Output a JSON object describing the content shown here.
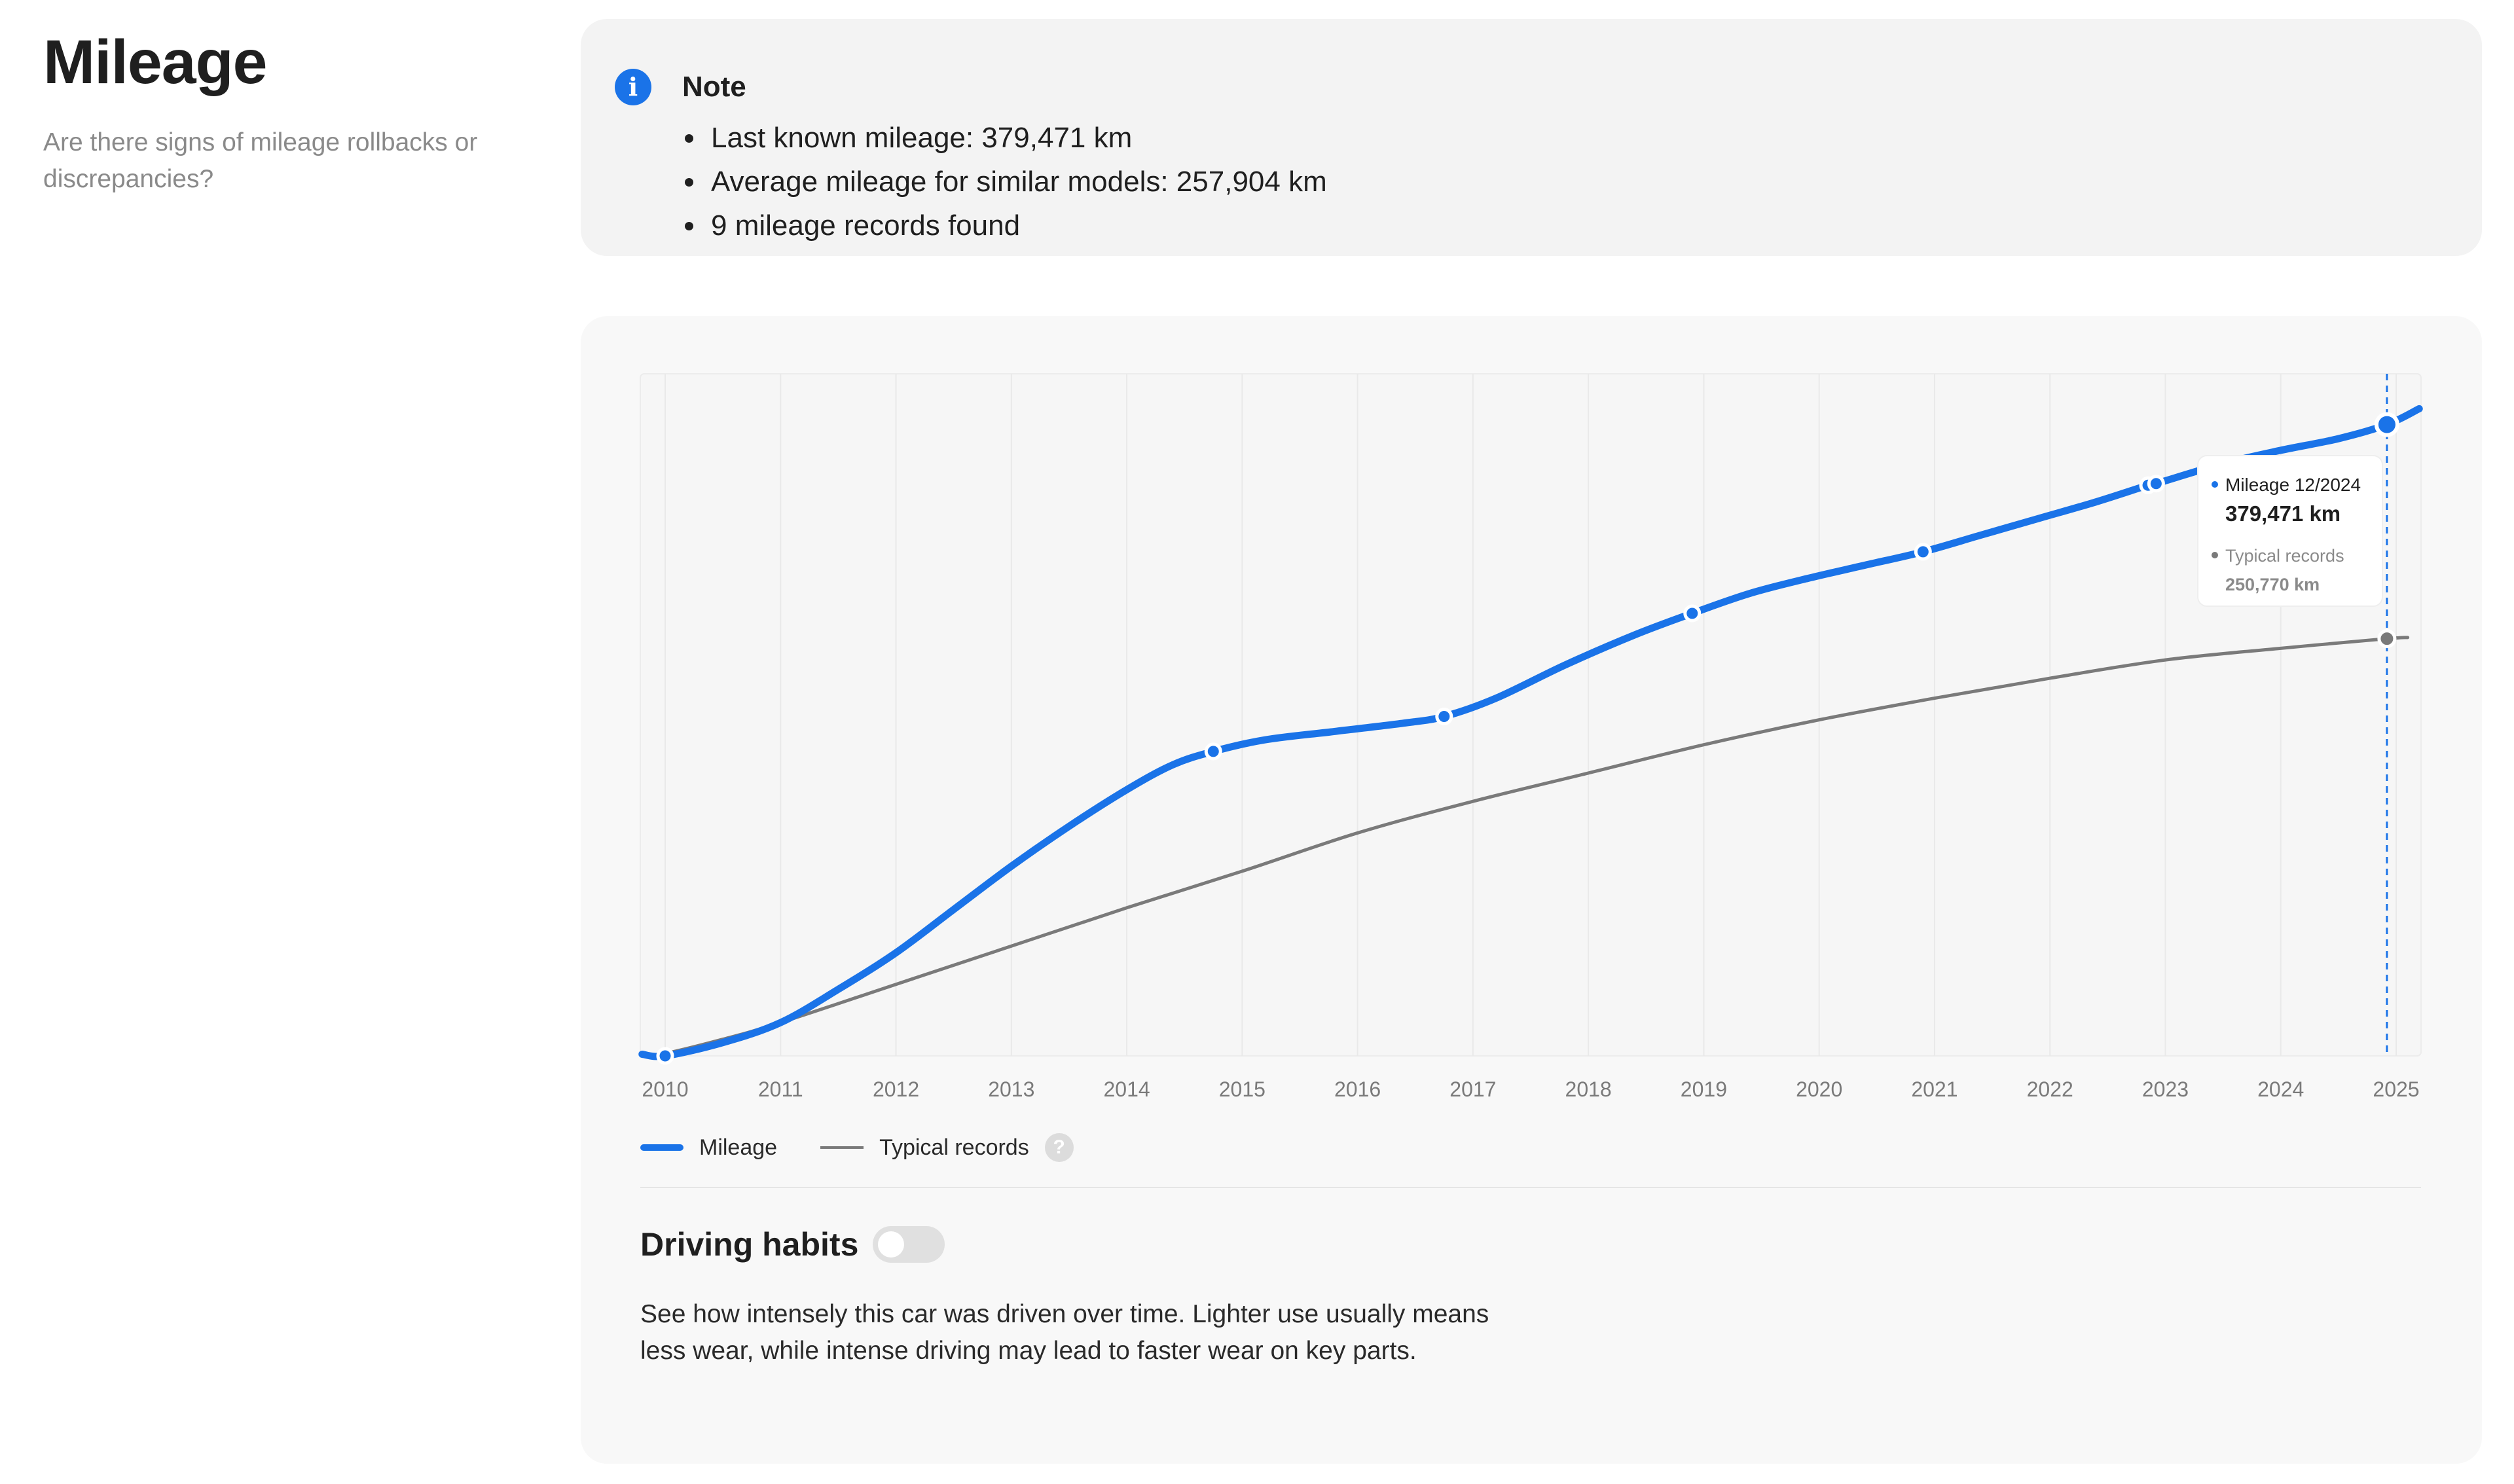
{
  "header": {
    "title": "Mileage",
    "subtitle": "Are there signs of mileage rollbacks or discrepancies?"
  },
  "note": {
    "icon": "info-icon",
    "title": "Note",
    "items": [
      "Last known mileage: 379,471 km",
      "Average mileage for similar models: 257,904 km",
      "9 mileage records found"
    ]
  },
  "legend": {
    "mileage": "Mileage",
    "typical": "Typical records",
    "help": "?"
  },
  "tooltip": {
    "mileage_label": "Mileage 12/2024",
    "mileage_value": "379,471 km",
    "typical_label": "Typical records",
    "typical_value": "250,770 km"
  },
  "habits": {
    "title": "Driving habits",
    "toggle_on": false,
    "description": "See how intensely this car was driven over time. Lighter use usually means less wear, while intense driving may lead to faster wear on key parts."
  },
  "colors": {
    "accent": "#1a73e8",
    "typical": "#7a7a7a"
  },
  "chart_data": {
    "type": "line",
    "x_ticks": [
      "2010",
      "2011",
      "2012",
      "2013",
      "2014",
      "2015",
      "2016",
      "2017",
      "2018",
      "2019",
      "2020",
      "2021",
      "2022",
      "2023",
      "2024",
      "2025"
    ],
    "xlim": [
      2010,
      2025
    ],
    "ylim": [
      0,
      410000
    ],
    "grid": "vertical",
    "legend_position": "bottom-left",
    "series": [
      {
        "name": "Mileage",
        "color": "#1a73e8",
        "points": [
          [
            2010.0,
            0
          ],
          [
            2014.75,
            183000
          ],
          [
            2016.75,
            204000
          ],
          [
            2018.9,
            266000
          ],
          [
            2020.9,
            303000
          ],
          [
            2022.85,
            343000
          ],
          [
            2022.92,
            344000
          ],
          [
            2024.92,
            379471
          ]
        ],
        "curve": [
          [
            2009.8,
            1000
          ],
          [
            2010.0,
            0
          ],
          [
            2010.5,
            8000
          ],
          [
            2011.0,
            20000
          ],
          [
            2011.5,
            40000
          ],
          [
            2012.0,
            62000
          ],
          [
            2012.5,
            88000
          ],
          [
            2013.0,
            114000
          ],
          [
            2013.5,
            138000
          ],
          [
            2014.0,
            160000
          ],
          [
            2014.4,
            175000
          ],
          [
            2014.75,
            183000
          ],
          [
            2015.2,
            190000
          ],
          [
            2015.8,
            195000
          ],
          [
            2016.4,
            200000
          ],
          [
            2016.75,
            204000
          ],
          [
            2017.2,
            215000
          ],
          [
            2017.8,
            235000
          ],
          [
            2018.4,
            253000
          ],
          [
            2018.9,
            266000
          ],
          [
            2019.4,
            278000
          ],
          [
            2019.9,
            287000
          ],
          [
            2020.4,
            295000
          ],
          [
            2020.9,
            303000
          ],
          [
            2021.4,
            313000
          ],
          [
            2021.9,
            323000
          ],
          [
            2022.4,
            333000
          ],
          [
            2022.85,
            343000
          ],
          [
            2022.92,
            344000
          ],
          [
            2023.5,
            356000
          ],
          [
            2024.0,
            364000
          ],
          [
            2024.5,
            371000
          ],
          [
            2024.92,
            379471
          ],
          [
            2025.2,
            389000
          ]
        ]
      },
      {
        "name": "Typical records",
        "color": "#7a7a7a",
        "points": [
          [
            2024.92,
            250770
          ]
        ],
        "curve": [
          [
            2009.8,
            1000
          ],
          [
            2010.0,
            1500
          ],
          [
            2010.5,
            10000
          ],
          [
            2011.0,
            20000
          ],
          [
            2012.0,
            43000
          ],
          [
            2013.0,
            66000
          ],
          [
            2014.0,
            89000
          ],
          [
            2015.0,
            111000
          ],
          [
            2016.0,
            134000
          ],
          [
            2017.0,
            153000
          ],
          [
            2018.0,
            170000
          ],
          [
            2019.0,
            187000
          ],
          [
            2020.0,
            202000
          ],
          [
            2021.0,
            215000
          ],
          [
            2022.0,
            227000
          ],
          [
            2023.0,
            238000
          ],
          [
            2024.0,
            245000
          ],
          [
            2024.92,
            250770
          ],
          [
            2025.1,
            251500
          ]
        ]
      }
    ],
    "cursor_x": 2024.92
  }
}
